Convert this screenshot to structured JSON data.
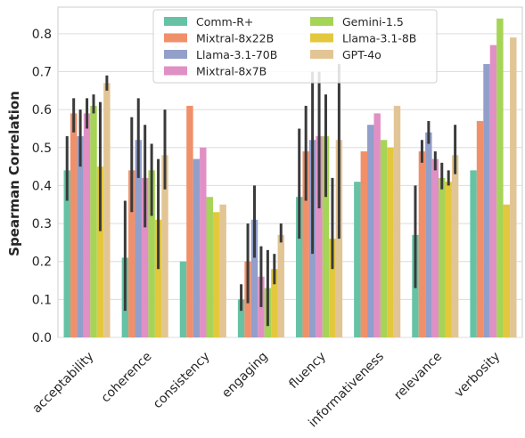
{
  "chart_data": {
    "type": "bar",
    "title": "",
    "xlabel": "",
    "ylabel": "Spearman Correlation",
    "ylim": [
      0,
      0.87
    ],
    "yticks": [
      "0.0",
      "0.1",
      "0.2",
      "0.3",
      "0.4",
      "0.5",
      "0.6",
      "0.7",
      "0.8"
    ],
    "grid": "horizontal",
    "legend_position": "top-center",
    "categories": [
      "acceptability",
      "coherence",
      "consistency",
      "engaging",
      "fluency",
      "informativeness",
      "relevance",
      "verbosity"
    ],
    "series": [
      {
        "name": "Comm-R+",
        "color": "#66c2a5",
        "values": [
          0.44,
          0.21,
          0.2,
          0.1,
          0.37,
          0.41,
          0.27,
          0.44
        ],
        "err_low": [
          0.36,
          0.07,
          null,
          0.07,
          0.26,
          null,
          0.13,
          null
        ],
        "err_high": [
          0.53,
          0.36,
          null,
          0.14,
          0.55,
          null,
          0.4,
          null
        ]
      },
      {
        "name": "Mixtral-8x22B",
        "color": "#f0906a",
        "values": [
          0.59,
          0.44,
          0.61,
          0.2,
          0.49,
          0.49,
          0.49,
          0.57
        ],
        "err_low": [
          0.54,
          0.33,
          null,
          0.09,
          0.36,
          null,
          0.46,
          null
        ],
        "err_high": [
          0.63,
          0.58,
          null,
          0.3,
          0.61,
          null,
          0.52,
          null
        ]
      },
      {
        "name": "Llama-3.1-70B",
        "color": "#929fcb",
        "values": [
          0.53,
          0.52,
          0.47,
          0.31,
          0.52,
          0.56,
          0.54,
          0.72
        ],
        "err_low": [
          0.45,
          0.42,
          null,
          0.21,
          0.22,
          null,
          0.51,
          null
        ],
        "err_high": [
          0.6,
          0.63,
          null,
          0.4,
          0.7,
          null,
          0.57,
          null
        ]
      },
      {
        "name": "Mixtral-8x7B",
        "color": "#e090c5",
        "values": [
          0.59,
          0.42,
          0.5,
          0.16,
          0.53,
          0.59,
          0.47,
          0.77
        ],
        "err_low": [
          0.55,
          0.29,
          null,
          0.08,
          0.34,
          null,
          0.44,
          null
        ],
        "err_high": [
          0.63,
          0.56,
          null,
          0.24,
          0.7,
          null,
          0.49,
          null
        ]
      },
      {
        "name": "Gemini-1.5",
        "color": "#a6d456",
        "values": [
          0.61,
          0.44,
          0.37,
          0.13,
          0.53,
          0.52,
          0.42,
          0.84
        ],
        "err_low": [
          0.59,
          0.32,
          null,
          0.03,
          0.37,
          null,
          0.39,
          null
        ],
        "err_high": [
          0.64,
          0.51,
          null,
          0.23,
          0.64,
          null,
          0.46,
          null
        ]
      },
      {
        "name": "Llama-3.1-8B",
        "color": "#e3c83d",
        "values": [
          0.45,
          0.31,
          0.33,
          0.18,
          0.26,
          0.5,
          0.41,
          0.35
        ],
        "err_low": [
          0.28,
          0.18,
          null,
          0.14,
          0.18,
          null,
          0.4,
          null
        ],
        "err_high": [
          0.62,
          0.47,
          null,
          0.22,
          0.42,
          null,
          0.44,
          null
        ]
      },
      {
        "name": "GPT-4o",
        "color": "#e2c595",
        "values": [
          0.67,
          0.48,
          0.35,
          0.27,
          0.52,
          0.61,
          0.48,
          0.79
        ],
        "err_low": [
          0.65,
          0.39,
          null,
          0.25,
          0.26,
          null,
          0.43,
          null
        ],
        "err_high": [
          0.69,
          0.6,
          null,
          0.3,
          0.72,
          null,
          0.56,
          null
        ]
      }
    ]
  }
}
